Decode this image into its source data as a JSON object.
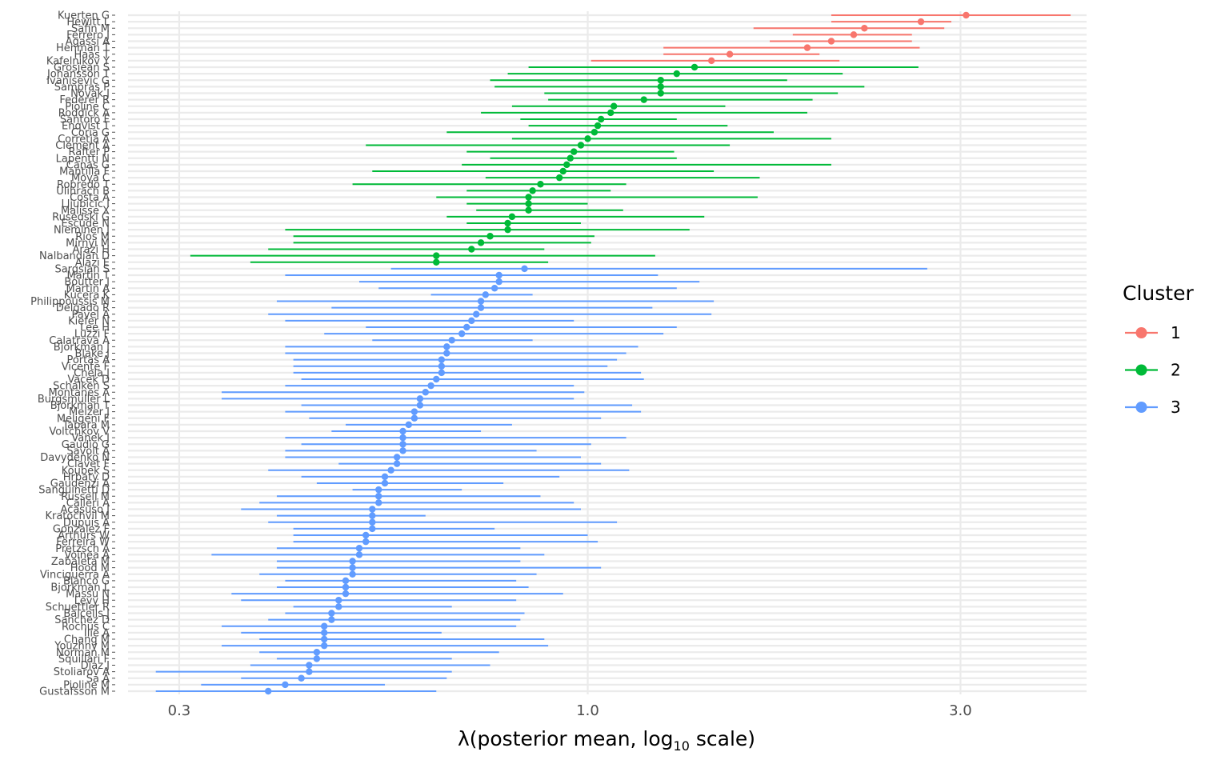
{
  "chart_data": {
    "type": "scatter",
    "xlabel_main": "λ(posterior mean, log",
    "xlabel_sub": "10",
    "xlabel_tail": " scale)",
    "ylabel": "",
    "x_scale": "log10",
    "xlim": [
      0.258,
      4.35
    ],
    "x_ticks": [
      0.3,
      1.0,
      3.0
    ],
    "x_tick_labels": [
      "0.3",
      "1.0",
      "3.0"
    ],
    "grid": true,
    "legend": {
      "title": "Cluster",
      "position": "right",
      "entries": [
        "1",
        "2",
        "3"
      ]
    },
    "colors": {
      "1": "#F8766D",
      "2": "#00BA38",
      "3": "#619CFF"
    },
    "players": [
      {
        "name": "Kuerten G",
        "mean": 3.05,
        "lo": 2.05,
        "hi": 4.15,
        "cluster": "1"
      },
      {
        "name": "Hewitt L",
        "mean": 2.67,
        "lo": 2.05,
        "hi": 2.92,
        "cluster": "1"
      },
      {
        "name": "Safin M",
        "mean": 2.26,
        "lo": 1.63,
        "hi": 2.86,
        "cluster": "1"
      },
      {
        "name": "Ferrero J",
        "mean": 2.19,
        "lo": 1.83,
        "hi": 2.6,
        "cluster": "1"
      },
      {
        "name": "Agassi A",
        "mean": 2.05,
        "lo": 1.71,
        "hi": 2.6,
        "cluster": "1"
      },
      {
        "name": "Henman T",
        "mean": 1.91,
        "lo": 1.25,
        "hi": 2.66,
        "cluster": "1"
      },
      {
        "name": "Haas T",
        "mean": 1.52,
        "lo": 1.25,
        "hi": 1.98,
        "cluster": "1"
      },
      {
        "name": "Kafelnikov Y",
        "mean": 1.44,
        "lo": 1.01,
        "hi": 2.1,
        "cluster": "1"
      },
      {
        "name": "Grosjean S",
        "mean": 1.37,
        "lo": 0.84,
        "hi": 2.65,
        "cluster": "2"
      },
      {
        "name": "Johansson T",
        "mean": 1.3,
        "lo": 0.79,
        "hi": 2.12,
        "cluster": "2"
      },
      {
        "name": "Ivanisevic G",
        "mean": 1.24,
        "lo": 0.75,
        "hi": 1.8,
        "cluster": "2"
      },
      {
        "name": "Sampras P",
        "mean": 1.24,
        "lo": 0.76,
        "hi": 2.26,
        "cluster": "2"
      },
      {
        "name": "Novak J",
        "mean": 1.24,
        "lo": 0.88,
        "hi": 2.09,
        "cluster": "2"
      },
      {
        "name": "Federer R",
        "mean": 1.18,
        "lo": 0.89,
        "hi": 1.94,
        "cluster": "2"
      },
      {
        "name": "Pioline C",
        "mean": 1.08,
        "lo": 0.8,
        "hi": 1.5,
        "cluster": "2"
      },
      {
        "name": "Roddick A",
        "mean": 1.07,
        "lo": 0.73,
        "hi": 1.91,
        "cluster": "2"
      },
      {
        "name": "Santoro F",
        "mean": 1.04,
        "lo": 0.82,
        "hi": 1.3,
        "cluster": "2"
      },
      {
        "name": "Enqvist T",
        "mean": 1.03,
        "lo": 0.84,
        "hi": 1.51,
        "cluster": "2"
      },
      {
        "name": "Coria G",
        "mean": 1.02,
        "lo": 0.66,
        "hi": 1.73,
        "cluster": "2"
      },
      {
        "name": "Corretja A",
        "mean": 1.0,
        "lo": 0.8,
        "hi": 2.05,
        "cluster": "2"
      },
      {
        "name": "Clement A",
        "mean": 0.98,
        "lo": 0.52,
        "hi": 1.52,
        "cluster": "2"
      },
      {
        "name": "Rafter P",
        "mean": 0.96,
        "lo": 0.7,
        "hi": 1.29,
        "cluster": "2"
      },
      {
        "name": "Lapentti N",
        "mean": 0.95,
        "lo": 0.75,
        "hi": 1.3,
        "cluster": "2"
      },
      {
        "name": "Canas G",
        "mean": 0.94,
        "lo": 0.69,
        "hi": 2.05,
        "cluster": "2"
      },
      {
        "name": "Mantilla F",
        "mean": 0.93,
        "lo": 0.53,
        "hi": 1.45,
        "cluster": "2"
      },
      {
        "name": "Moya C",
        "mean": 0.92,
        "lo": 0.74,
        "hi": 1.66,
        "cluster": "2"
      },
      {
        "name": "Robredo T",
        "mean": 0.87,
        "lo": 0.5,
        "hi": 1.12,
        "cluster": "2"
      },
      {
        "name": "Ulihrach B",
        "mean": 0.85,
        "lo": 0.7,
        "hi": 1.07,
        "cluster": "2"
      },
      {
        "name": "Costa A",
        "mean": 0.84,
        "lo": 0.64,
        "hi": 1.65,
        "cluster": "2"
      },
      {
        "name": "Lljubicic I",
        "mean": 0.84,
        "lo": 0.7,
        "hi": 1.0,
        "cluster": "2"
      },
      {
        "name": "Malisse X",
        "mean": 0.84,
        "lo": 0.72,
        "hi": 1.11,
        "cluster": "2"
      },
      {
        "name": "Rusedski G",
        "mean": 0.8,
        "lo": 0.66,
        "hi": 1.41,
        "cluster": "2"
      },
      {
        "name": "Escude N",
        "mean": 0.79,
        "lo": 0.7,
        "hi": 0.98,
        "cluster": "2"
      },
      {
        "name": "Nieminen J",
        "mean": 0.79,
        "lo": 0.41,
        "hi": 1.35,
        "cluster": "2"
      },
      {
        "name": "Rios M",
        "mean": 0.75,
        "lo": 0.42,
        "hi": 1.02,
        "cluster": "2"
      },
      {
        "name": "Mirnyi M",
        "mean": 0.73,
        "lo": 0.42,
        "hi": 1.01,
        "cluster": "2"
      },
      {
        "name": "Arazi H",
        "mean": 0.71,
        "lo": 0.39,
        "hi": 0.88,
        "cluster": "2"
      },
      {
        "name": "Nalbandian D",
        "mean": 0.64,
        "lo": 0.31,
        "hi": 1.22,
        "cluster": "2"
      },
      {
        "name": "Alazi E",
        "mean": 0.64,
        "lo": 0.37,
        "hi": 0.89,
        "cluster": "2"
      },
      {
        "name": "Sargsian S",
        "mean": 0.83,
        "lo": 0.56,
        "hi": 2.72,
        "cluster": "3"
      },
      {
        "name": "Martin T",
        "mean": 0.77,
        "lo": 0.41,
        "hi": 1.23,
        "cluster": "3"
      },
      {
        "name": "Boutter J",
        "mean": 0.77,
        "lo": 0.51,
        "hi": 1.39,
        "cluster": "3"
      },
      {
        "name": "Martin A",
        "mean": 0.76,
        "lo": 0.54,
        "hi": 1.3,
        "cluster": "3"
      },
      {
        "name": "Kucera K",
        "mean": 0.74,
        "lo": 0.63,
        "hi": 0.85,
        "cluster": "3"
      },
      {
        "name": "Philippoussis M",
        "mean": 0.73,
        "lo": 0.4,
        "hi": 1.45,
        "cluster": "3"
      },
      {
        "name": "Delgado R",
        "mean": 0.73,
        "lo": 0.47,
        "hi": 1.21,
        "cluster": "3"
      },
      {
        "name": "Pavel A",
        "mean": 0.72,
        "lo": 0.39,
        "hi": 1.44,
        "cluster": "3"
      },
      {
        "name": "Kiefer N",
        "mean": 0.71,
        "lo": 0.41,
        "hi": 0.96,
        "cluster": "3"
      },
      {
        "name": "Lee H",
        "mean": 0.7,
        "lo": 0.52,
        "hi": 1.3,
        "cluster": "3"
      },
      {
        "name": "Luzzi F",
        "mean": 0.69,
        "lo": 0.46,
        "hi": 1.25,
        "cluster": "3"
      },
      {
        "name": "Calatrava A",
        "mean": 0.67,
        "lo": 0.53,
        "hi": 0.85,
        "cluster": "3"
      },
      {
        "name": "Bjorkman J",
        "mean": 0.66,
        "lo": 0.41,
        "hi": 1.16,
        "cluster": "3"
      },
      {
        "name": "Blake J",
        "mean": 0.66,
        "lo": 0.41,
        "hi": 1.12,
        "cluster": "3"
      },
      {
        "name": "Portas A",
        "mean": 0.65,
        "lo": 0.42,
        "hi": 1.09,
        "cluster": "3"
      },
      {
        "name": "Vicente F",
        "mean": 0.65,
        "lo": 0.42,
        "hi": 1.06,
        "cluster": "3"
      },
      {
        "name": "Chela J",
        "mean": 0.65,
        "lo": 0.42,
        "hi": 1.17,
        "cluster": "3"
      },
      {
        "name": "Vacek D",
        "mean": 0.64,
        "lo": 0.43,
        "hi": 1.18,
        "cluster": "3"
      },
      {
        "name": "Schalken S",
        "mean": 0.63,
        "lo": 0.41,
        "hi": 0.96,
        "cluster": "3"
      },
      {
        "name": "Montanes A",
        "mean": 0.62,
        "lo": 0.34,
        "hi": 0.99,
        "cluster": "3"
      },
      {
        "name": "Burgsmuller L",
        "mean": 0.61,
        "lo": 0.34,
        "hi": 0.96,
        "cluster": "3"
      },
      {
        "name": "Bjorkman T",
        "mean": 0.61,
        "lo": 0.43,
        "hi": 1.14,
        "cluster": "3"
      },
      {
        "name": "Melzer J",
        "mean": 0.6,
        "lo": 0.41,
        "hi": 1.17,
        "cluster": "3"
      },
      {
        "name": "Meligeni F",
        "mean": 0.6,
        "lo": 0.44,
        "hi": 1.04,
        "cluster": "3"
      },
      {
        "name": "Tabara M",
        "mean": 0.59,
        "lo": 0.49,
        "hi": 0.8,
        "cluster": "3"
      },
      {
        "name": "Voltchkov V",
        "mean": 0.58,
        "lo": 0.47,
        "hi": 0.73,
        "cluster": "3"
      },
      {
        "name": "Vanek J",
        "mean": 0.58,
        "lo": 0.41,
        "hi": 1.12,
        "cluster": "3"
      },
      {
        "name": "Gaudio G",
        "mean": 0.58,
        "lo": 0.43,
        "hi": 1.01,
        "cluster": "3"
      },
      {
        "name": "Savolt A",
        "mean": 0.58,
        "lo": 0.41,
        "hi": 0.86,
        "cluster": "3"
      },
      {
        "name": "Davydenko N",
        "mean": 0.57,
        "lo": 0.41,
        "hi": 0.98,
        "cluster": "3"
      },
      {
        "name": "Clavet F",
        "mean": 0.57,
        "lo": 0.48,
        "hi": 1.04,
        "cluster": "3"
      },
      {
        "name": "Koubek S",
        "mean": 0.56,
        "lo": 0.39,
        "hi": 1.13,
        "cluster": "3"
      },
      {
        "name": "Hrbaty D",
        "mean": 0.55,
        "lo": 0.43,
        "hi": 0.92,
        "cluster": "3"
      },
      {
        "name": "Gaudenzi A",
        "mean": 0.55,
        "lo": 0.45,
        "hi": 0.78,
        "cluster": "3"
      },
      {
        "name": "Sanguinetti D",
        "mean": 0.54,
        "lo": 0.5,
        "hi": 0.69,
        "cluster": "3"
      },
      {
        "name": "Russell M",
        "mean": 0.54,
        "lo": 0.4,
        "hi": 0.87,
        "cluster": "3"
      },
      {
        "name": "Calleri A",
        "mean": 0.54,
        "lo": 0.38,
        "hi": 0.96,
        "cluster": "3"
      },
      {
        "name": "Acasuso J",
        "mean": 0.53,
        "lo": 0.36,
        "hi": 0.98,
        "cluster": "3"
      },
      {
        "name": "Kratochvil M",
        "mean": 0.53,
        "lo": 0.4,
        "hi": 0.62,
        "cluster": "3"
      },
      {
        "name": "Dupuis A",
        "mean": 0.53,
        "lo": 0.39,
        "hi": 1.09,
        "cluster": "3"
      },
      {
        "name": "Gonzalez F",
        "mean": 0.53,
        "lo": 0.42,
        "hi": 0.76,
        "cluster": "3"
      },
      {
        "name": "Arthurs W",
        "mean": 0.52,
        "lo": 0.42,
        "hi": 1.0,
        "cluster": "3"
      },
      {
        "name": "Ferreira W",
        "mean": 0.52,
        "lo": 0.42,
        "hi": 1.03,
        "cluster": "3"
      },
      {
        "name": "Pretzsch A",
        "mean": 0.51,
        "lo": 0.4,
        "hi": 0.82,
        "cluster": "3"
      },
      {
        "name": "Voinea A",
        "mean": 0.51,
        "lo": 0.33,
        "hi": 0.88,
        "cluster": "3"
      },
      {
        "name": "Zabaleta M",
        "mean": 0.5,
        "lo": 0.4,
        "hi": 0.82,
        "cluster": "3"
      },
      {
        "name": "Hood M",
        "mean": 0.5,
        "lo": 0.4,
        "hi": 1.04,
        "cluster": "3"
      },
      {
        "name": "Vinciguerra A",
        "mean": 0.5,
        "lo": 0.38,
        "hi": 0.86,
        "cluster": "3"
      },
      {
        "name": "Blanco G",
        "mean": 0.49,
        "lo": 0.41,
        "hi": 0.81,
        "cluster": "3"
      },
      {
        "name": "Bjorkman L",
        "mean": 0.49,
        "lo": 0.4,
        "hi": 0.84,
        "cluster": "3"
      },
      {
        "name": "Massu N",
        "mean": 0.49,
        "lo": 0.35,
        "hi": 0.93,
        "cluster": "3"
      },
      {
        "name": "Levy H",
        "mean": 0.48,
        "lo": 0.36,
        "hi": 0.81,
        "cluster": "3"
      },
      {
        "name": "Schuettler R",
        "mean": 0.48,
        "lo": 0.42,
        "hi": 0.67,
        "cluster": "3"
      },
      {
        "name": "Balcells J",
        "mean": 0.47,
        "lo": 0.41,
        "hi": 0.83,
        "cluster": "3"
      },
      {
        "name": "Sanchez D",
        "mean": 0.47,
        "lo": 0.39,
        "hi": 0.82,
        "cluster": "3"
      },
      {
        "name": "Rochus C",
        "mean": 0.46,
        "lo": 0.34,
        "hi": 0.81,
        "cluster": "3"
      },
      {
        "name": "Ilie A",
        "mean": 0.46,
        "lo": 0.36,
        "hi": 0.65,
        "cluster": "3"
      },
      {
        "name": "Chang M",
        "mean": 0.46,
        "lo": 0.38,
        "hi": 0.88,
        "cluster": "3"
      },
      {
        "name": "Youzhny M",
        "mean": 0.46,
        "lo": 0.34,
        "hi": 0.89,
        "cluster": "3"
      },
      {
        "name": "Norman M",
        "mean": 0.45,
        "lo": 0.38,
        "hi": 0.77,
        "cluster": "3"
      },
      {
        "name": "Squillari F",
        "mean": 0.45,
        "lo": 0.4,
        "hi": 0.67,
        "cluster": "3"
      },
      {
        "name": "Diaz J",
        "mean": 0.44,
        "lo": 0.37,
        "hi": 0.75,
        "cluster": "3"
      },
      {
        "name": "Stoliarov A",
        "mean": 0.44,
        "lo": 0.28,
        "hi": 0.67,
        "cluster": "3"
      },
      {
        "name": "Sa A",
        "mean": 0.43,
        "lo": 0.36,
        "hi": 0.66,
        "cluster": "3"
      },
      {
        "name": "Pioline M",
        "mean": 0.41,
        "lo": 0.32,
        "hi": 0.55,
        "cluster": "3"
      },
      {
        "name": "Gustafsson M",
        "mean": 0.39,
        "lo": 0.28,
        "hi": 0.64,
        "cluster": "3"
      }
    ]
  }
}
